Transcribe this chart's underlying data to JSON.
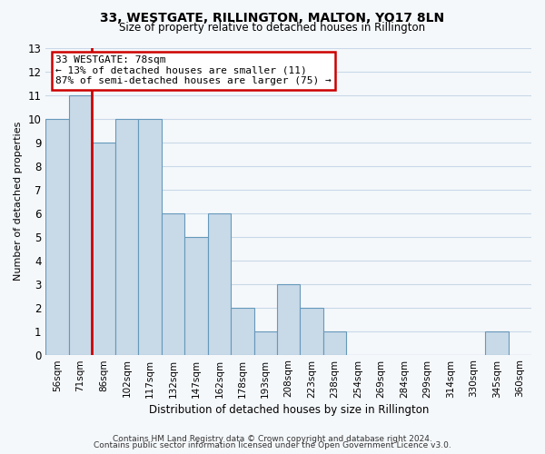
{
  "title": "33, WESTGATE, RILLINGTON, MALTON, YO17 8LN",
  "subtitle": "Size of property relative to detached houses in Rillington",
  "xlabel": "Distribution of detached houses by size in Rillington",
  "ylabel": "Number of detached properties",
  "bar_labels": [
    "56sqm",
    "71sqm",
    "86sqm",
    "102sqm",
    "117sqm",
    "132sqm",
    "147sqm",
    "162sqm",
    "178sqm",
    "193sqm",
    "208sqm",
    "223sqm",
    "238sqm",
    "254sqm",
    "269sqm",
    "284sqm",
    "299sqm",
    "314sqm",
    "330sqm",
    "345sqm",
    "360sqm"
  ],
  "bar_values": [
    10,
    11,
    9,
    10,
    10,
    6,
    5,
    6,
    2,
    1,
    3,
    2,
    1,
    0,
    0,
    0,
    0,
    0,
    0,
    1,
    0
  ],
  "bar_color": "#c8d9e8",
  "bar_edge_color": "#6699bb",
  "property_line_label": "33 WESTGATE: 78sqm",
  "annotation_line1": "← 13% of detached houses are smaller (11)",
  "annotation_line2": "87% of semi-detached houses are larger (75) →",
  "annotation_box_edge": "#cc0000",
  "annotation_box_face": "#ffffff",
  "vline_color": "#cc0000",
  "vline_x": 1.5,
  "ylim": [
    0,
    13
  ],
  "footer1": "Contains HM Land Registry data © Crown copyright and database right 2024.",
  "footer2": "Contains public sector information licensed under the Open Government Licence v3.0.",
  "background_color": "#f5f8fb",
  "grid_color": "#c8d8e8"
}
